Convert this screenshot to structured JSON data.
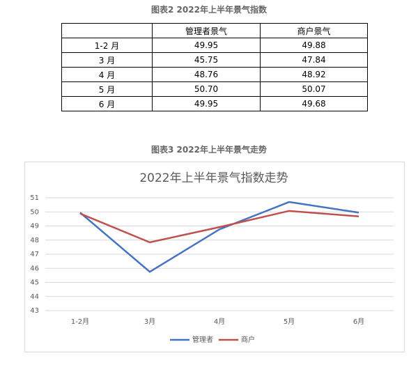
{
  "table": {
    "caption": "图表2  2022年上半年景气指数",
    "header": [
      "管理者景气",
      "商户景气"
    ],
    "rows": [
      [
        "1-2 月",
        "49.95",
        "49.88"
      ],
      [
        "3 月",
        "45.75",
        "47.84"
      ],
      [
        "4 月",
        "48.76",
        "48.92"
      ],
      [
        "5 月",
        "50.70",
        "50.07"
      ],
      [
        "6 月",
        "49.95",
        "49.68"
      ]
    ]
  },
  "chart_data": {
    "type": "line",
    "caption": "图表3  2022年上半年景气走势",
    "title": "2022年上半年景气指数走势",
    "categories": [
      "1-2月",
      "3月",
      "4月",
      "5月",
      "6月"
    ],
    "series": [
      {
        "name": "管理者",
        "color": "#4472c4",
        "values": [
          49.95,
          45.75,
          48.76,
          50.7,
          49.95
        ]
      },
      {
        "name": "商户",
        "color": "#c0504d",
        "values": [
          49.88,
          47.84,
          48.92,
          50.07,
          49.68
        ]
      }
    ],
    "ylim": [
      43,
      51
    ],
    "yticks": [
      43,
      44,
      45,
      46,
      47,
      48,
      49,
      50,
      51
    ],
    "grid": true,
    "legend": "bottom"
  }
}
